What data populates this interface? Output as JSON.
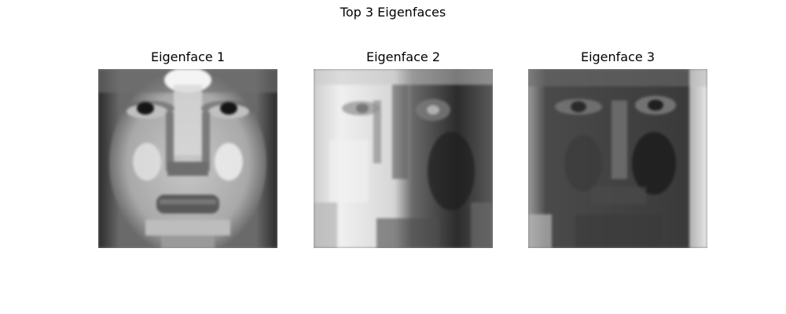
{
  "figure": {
    "title": "Top 3 Eigenfaces"
  },
  "panels": [
    {
      "title": "Eigenface 1"
    },
    {
      "title": "Eigenface 2"
    },
    {
      "title": "Eigenface 3"
    }
  ],
  "colormap": "gray"
}
